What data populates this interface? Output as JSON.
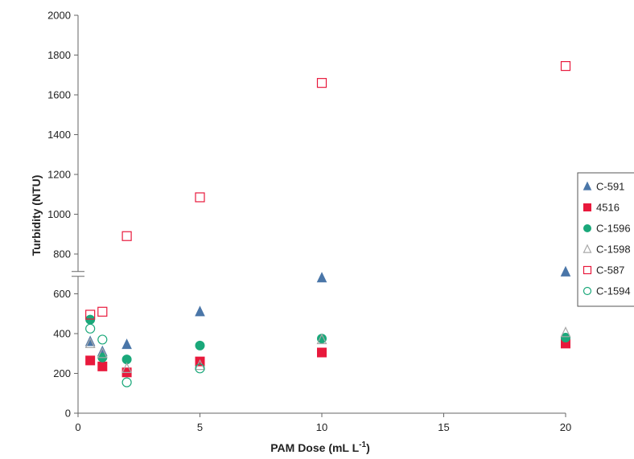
{
  "chart_data": {
    "type": "scatter",
    "xlabel": "PAM Dose (mL L",
    "xlabel_sup": "-1",
    "xlabel_end": ")",
    "ylabel": "Turbidity (NTU)",
    "xlim": [
      0,
      20
    ],
    "ylim": [
      0,
      2000
    ],
    "x_ticks": [
      0,
      5,
      10,
      15,
      20
    ],
    "y_ticks": [
      0,
      200,
      400,
      600,
      800,
      1000,
      1200,
      1400,
      1600,
      1800,
      2000
    ],
    "grid": false,
    "axis_break": true,
    "legend_position": "right",
    "series": [
      {
        "name": "C-591",
        "marker": "triangle",
        "filled": true,
        "color": "#4a76a8",
        "x": [
          0.5,
          1,
          2,
          5,
          10,
          20
        ],
        "y": [
          360,
          310,
          345,
          510,
          680,
          710
        ]
      },
      {
        "name": "4516",
        "marker": "square",
        "filled": true,
        "color": "#e8193c",
        "x": [
          0.5,
          1,
          2,
          5,
          10,
          20
        ],
        "y": [
          265,
          235,
          205,
          260,
          305,
          350
        ]
      },
      {
        "name": "C-1596",
        "marker": "circle",
        "filled": true,
        "color": "#1aa87a",
        "x": [
          0.5,
          1,
          2,
          5,
          10,
          20
        ],
        "y": [
          470,
          280,
          270,
          340,
          375,
          380
        ]
      },
      {
        "name": "C-1598",
        "marker": "triangle",
        "filled": false,
        "color": "#a8a8a8",
        "x": [
          0.5,
          1,
          2,
          5,
          10,
          20
        ],
        "y": [
          350,
          300,
          225,
          240,
          370,
          405
        ]
      },
      {
        "name": "C-587",
        "marker": "square",
        "filled": false,
        "color": "#e8193c",
        "x": [
          0.5,
          1,
          2,
          5,
          10,
          20
        ],
        "y": [
          495,
          510,
          890,
          1085,
          1660,
          1745
        ]
      },
      {
        "name": "C-1594",
        "marker": "circle",
        "filled": false,
        "color": "#1aa87a",
        "x": [
          0.5,
          1,
          2,
          5
        ],
        "y": [
          425,
          370,
          155,
          225
        ]
      }
    ]
  }
}
